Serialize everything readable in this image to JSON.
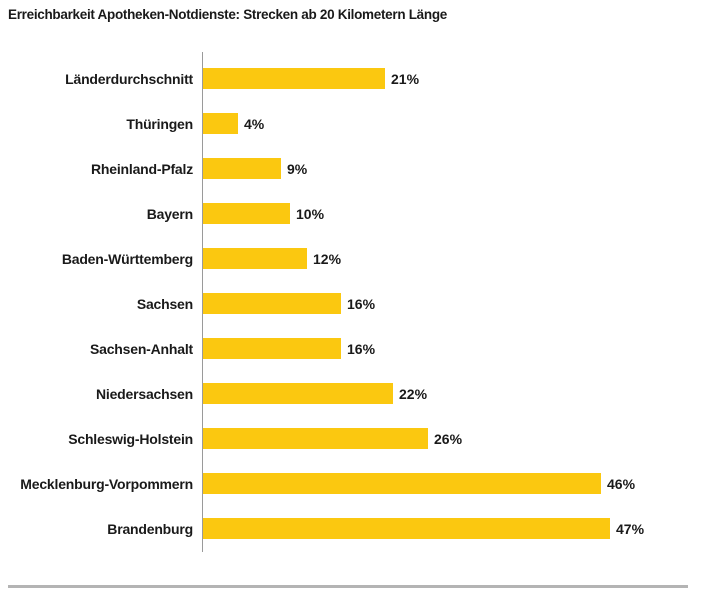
{
  "title": "Erreichbarkeit Apotheken-Notdienste: Strecken ab 20 Kilometern Länge",
  "chart_data": {
    "type": "bar",
    "orientation": "horizontal",
    "title": "Erreichbarkeit Apotheken-Notdienste: Strecken ab 20 Kilometern Länge",
    "categories": [
      "Länderdurchschnitt",
      "Thüringen",
      "Rheinland-Pfalz",
      "Bayern",
      "Baden-Württemberg",
      "Sachsen",
      "Sachsen-Anhalt",
      "Niedersachsen",
      "Schleswig-Holstein",
      "Mecklenburg-Vorpommern",
      "Brandenburg"
    ],
    "values": [
      21,
      4,
      9,
      10,
      12,
      16,
      16,
      22,
      26,
      46,
      47
    ],
    "value_suffix": "%",
    "xlabel": "",
    "ylabel": "",
    "xlim": [
      0,
      50
    ],
    "grid": false,
    "legend": false,
    "data_labels": true,
    "bar_color": "#FBC810",
    "axis_line_color": "#9a9a9a",
    "divider_color": "#b4b4b4",
    "text_color": "#1a1a1a"
  }
}
